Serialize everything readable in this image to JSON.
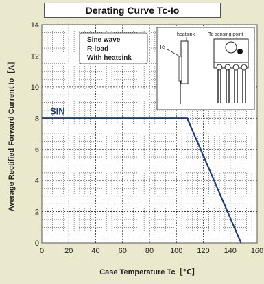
{
  "chart_data": {
    "type": "line",
    "title": "Derating Curve Tc-Io",
    "xlabel": "Case Temperature   Tc［℃］",
    "ylabel": "Average Rectified Forward Current   Io［A］",
    "xlim": [
      0,
      160
    ],
    "ylim": [
      0,
      14
    ],
    "x_ticks": [
      0,
      20,
      40,
      60,
      80,
      100,
      120,
      140,
      160
    ],
    "y_ticks": [
      0,
      2,
      4,
      6,
      8,
      10,
      12,
      14
    ],
    "grid": true,
    "series": [
      {
        "name": "SIN",
        "x": [
          0,
          108,
          148
        ],
        "y": [
          8,
          8,
          0
        ]
      }
    ],
    "annotations": {
      "conditions": [
        "Sine wave",
        "R-load",
        "With heatsink"
      ],
      "inset_labels": [
        "heatsink",
        "Tc-sensing point",
        "Tc"
      ]
    }
  },
  "colors": {
    "background": "#ebe9cd",
    "plot_background": "#ffffff",
    "grid": "#4a4a4a",
    "curve": "#1c3d7a"
  }
}
